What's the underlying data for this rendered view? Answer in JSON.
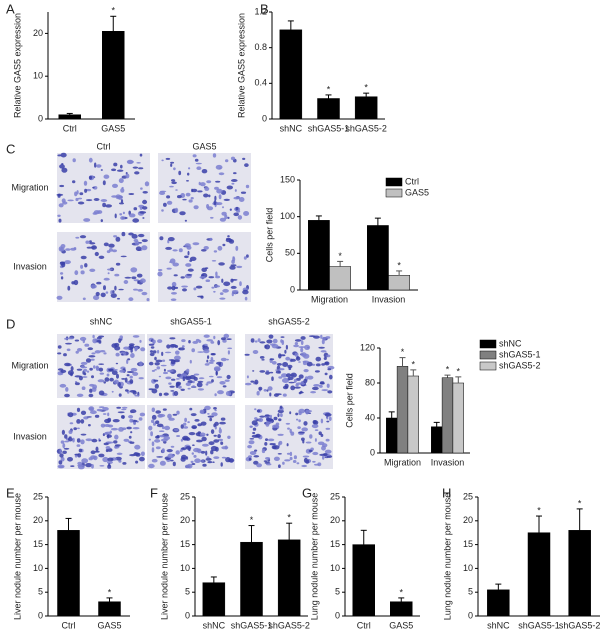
{
  "panel_labels": [
    "A",
    "B",
    "C",
    "D",
    "E",
    "F",
    "G",
    "H"
  ],
  "images": [
    {
      "columns": [
        "Ctrl",
        "GAS5"
      ],
      "rows": [
        "Migration",
        "Invasion"
      ]
    },
    {
      "columns": [
        "shNC",
        "shGAS5-1",
        "shGAS5-2"
      ],
      "rows": [
        "Migration",
        "Invasion"
      ]
    }
  ],
  "chart_data": [
    {
      "type": "bar",
      "ylabel": "Relative GAS5 expression",
      "categories": [
        "Ctrl",
        "GAS5"
      ],
      "values": [
        1,
        20.5
      ],
      "errors": [
        0.3,
        3.5
      ],
      "significance": [
        null,
        "*"
      ],
      "color": "#000000",
      "ylim": [
        0,
        25
      ],
      "yticks": [
        0,
        10,
        20
      ]
    },
    {
      "type": "bar",
      "ylabel": "Relative GAS5 expression",
      "categories": [
        "shNC",
        "shGAS5-1",
        "shGAS5-2"
      ],
      "values": [
        1.0,
        0.23,
        0.25
      ],
      "errors": [
        0.1,
        0.04,
        0.04
      ],
      "significance": [
        null,
        "*",
        "*"
      ],
      "color": "#000000",
      "ylim": [
        0,
        1.2
      ],
      "yticks": [
        0,
        0.4,
        0.8,
        1.2
      ]
    },
    {
      "type": "bar",
      "ylabel": "Cells per field",
      "categories": [
        "Migration",
        "Invasion"
      ],
      "legend": "right",
      "series": [
        {
          "name": "Ctrl",
          "color": "#000000",
          "values": [
            95,
            88
          ],
          "errors": [
            6,
            10
          ],
          "significance": [
            null,
            null
          ]
        },
        {
          "name": "GAS5",
          "color": "#c0c0c0",
          "values": [
            32,
            20
          ],
          "errors": [
            7,
            6
          ],
          "significance": [
            "*",
            "*"
          ]
        }
      ],
      "ylim": [
        0,
        150
      ],
      "yticks": [
        0,
        50,
        100,
        150
      ]
    },
    {
      "type": "bar",
      "ylabel": "Cells per field",
      "categories": [
        "Migration",
        "Invasion"
      ],
      "legend": "right",
      "series": [
        {
          "name": "shNC",
          "color": "#000000",
          "values": [
            40,
            30
          ],
          "errors": [
            7,
            5
          ],
          "significance": [
            null,
            null
          ]
        },
        {
          "name": "shGAS5-1",
          "color": "#808080",
          "values": [
            99,
            86
          ],
          "errors": [
            10,
            3
          ],
          "significance": [
            "*",
            "*"
          ]
        },
        {
          "name": "shGAS5-2",
          "color": "#c8c8c8",
          "values": [
            88,
            80
          ],
          "errors": [
            7,
            7
          ],
          "significance": [
            "*",
            "*"
          ]
        }
      ],
      "ylim": [
        0,
        120
      ],
      "yticks": [
        0,
        40,
        80,
        120
      ]
    },
    {
      "type": "bar",
      "ylabel": "Liver nodule number per mouse",
      "categories": [
        "Ctrl",
        "GAS5"
      ],
      "values": [
        18,
        3
      ],
      "errors": [
        2.5,
        0.8
      ],
      "significance": [
        null,
        "*"
      ],
      "color": "#000000",
      "ylim": [
        0,
        25
      ],
      "yticks": [
        0,
        5,
        10,
        15,
        20,
        25
      ]
    },
    {
      "type": "bar",
      "ylabel": "Liver nodule number per mouse",
      "categories": [
        "shNC",
        "shGAS5-1",
        "shGAS5-2"
      ],
      "values": [
        7,
        15.5,
        16
      ],
      "errors": [
        1.2,
        3.5,
        3.5
      ],
      "significance": [
        null,
        "*",
        "*"
      ],
      "color": "#000000",
      "ylim": [
        0,
        25
      ],
      "yticks": [
        0,
        5,
        10,
        15,
        20,
        25
      ]
    },
    {
      "type": "bar",
      "ylabel": "Lung nodule number per mouse",
      "categories": [
        "Ctrl",
        "GAS5"
      ],
      "values": [
        15,
        3
      ],
      "errors": [
        3,
        0.8
      ],
      "significance": [
        null,
        "*"
      ],
      "color": "#000000",
      "ylim": [
        0,
        25
      ],
      "yticks": [
        0,
        5,
        10,
        15,
        20,
        25
      ]
    },
    {
      "type": "bar",
      "ylabel": "Lung nodule number per mouse",
      "categories": [
        "shNC",
        "shGAS5-1",
        "shGAS5-2"
      ],
      "values": [
        5.5,
        17.5,
        18
      ],
      "errors": [
        1.2,
        3.5,
        4.5
      ],
      "significance": [
        null,
        "*",
        "*"
      ],
      "color": "#000000",
      "ylim": [
        0,
        25
      ],
      "yticks": [
        0,
        5,
        10,
        15,
        20,
        25
      ]
    }
  ]
}
